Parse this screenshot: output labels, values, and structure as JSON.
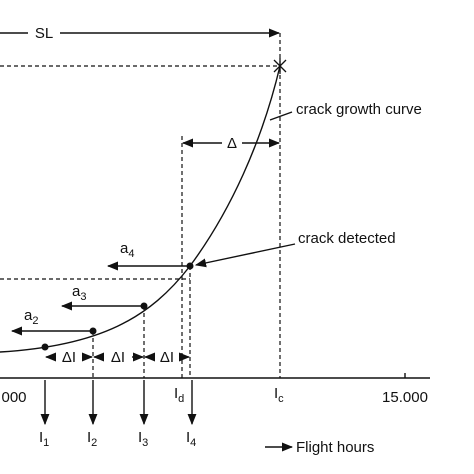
{
  "top_label": "SL",
  "curve_label": "crack growth curve",
  "delta_label": "Δ",
  "detected_label": "crack detected",
  "crack_sizes": [
    {
      "main": "a",
      "sub": "4"
    },
    {
      "main": "a",
      "sub": "3"
    },
    {
      "main": "a",
      "sub": "2"
    }
  ],
  "intervals": [
    "ΔI",
    "ΔI",
    "ΔI"
  ],
  "axis_ticks": [
    "000",
    "15.000"
  ],
  "inspection_markers": [
    {
      "main": "I",
      "sub": "d"
    },
    {
      "main": "I",
      "sub": "c"
    }
  ],
  "inspections": [
    {
      "main": "I",
      "sub": "1"
    },
    {
      "main": "I",
      "sub": "2"
    },
    {
      "main": "I",
      "sub": "3"
    },
    {
      "main": "I",
      "sub": "4"
    }
  ],
  "axis_title": "Flight hours"
}
